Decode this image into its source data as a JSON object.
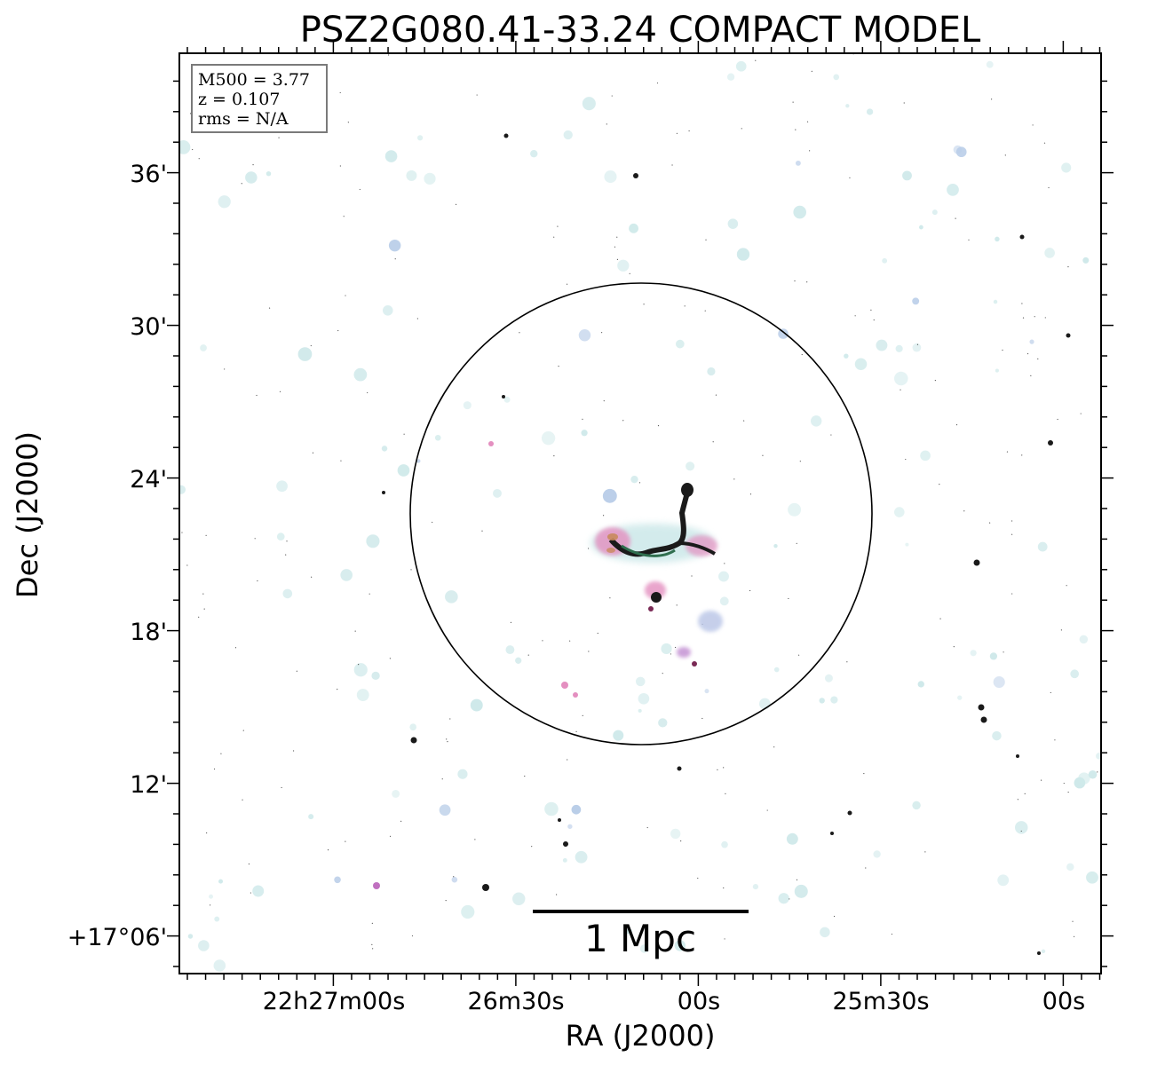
{
  "title": "PSZ2G080.41-33.24 COMPACT MODEL",
  "axes": {
    "xlabel": "RA (J2000)",
    "ylabel": "Dec (J2000)",
    "x_ticks": [
      "22h27m00s",
      "26m30s",
      "00s",
      "25m30s",
      "00s"
    ],
    "y_ticks": [
      "36'",
      "30'",
      "24'",
      "18'",
      "12'",
      "+17°06'"
    ]
  },
  "info_box": {
    "lines": [
      "M500 = 3.77",
      "z = 0.107",
      "rms = N/A"
    ]
  },
  "scale_bar": {
    "label": "1 Mpc"
  },
  "colors": {
    "background": "#ffffff",
    "frame": "#000000",
    "faint_source": "#cfe9ea",
    "cluster_pink": "#e48fc0",
    "cluster_dark": "#1a1a1a",
    "cluster_green": "#2f6e4e",
    "cluster_orange": "#c98a5c",
    "info_box_border": "#7a7a7a"
  }
}
